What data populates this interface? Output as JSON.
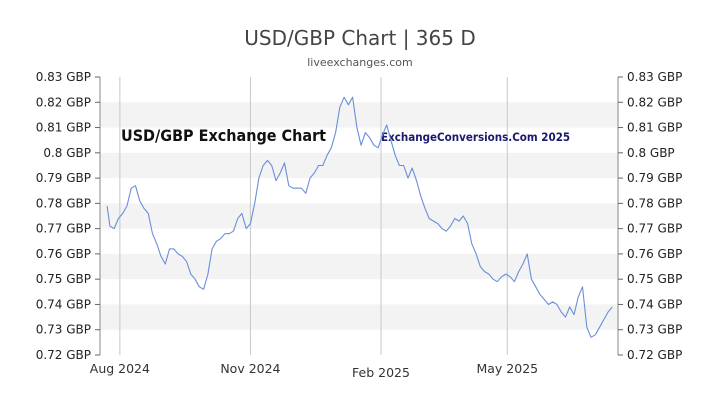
{
  "chart_data": {
    "type": "line",
    "title": "USD/GBP Chart | 365 D",
    "subtitle": "liveexchanges.com",
    "watermarks": [
      "USD/GBP Exchange Chart",
      "ExchangeConversions.Com 2025"
    ],
    "ylim": [
      0.72,
      0.83
    ],
    "yticks": [
      {
        "value": 0.83,
        "label": "0.83 GBP"
      },
      {
        "value": 0.82,
        "label": "0.82 GBP"
      },
      {
        "value": 0.81,
        "label": "0.81 GBP"
      },
      {
        "value": 0.8,
        "label": "0.8 GBP"
      },
      {
        "value": 0.79,
        "label": "0.79 GBP"
      },
      {
        "value": 0.78,
        "label": "0.78 GBP"
      },
      {
        "value": 0.77,
        "label": "0.77 GBP"
      },
      {
        "value": 0.76,
        "label": "0.76 GBP"
      },
      {
        "value": 0.75,
        "label": "0.75 GBP"
      },
      {
        "value": 0.74,
        "label": "0.74 GBP"
      },
      {
        "value": 0.73,
        "label": "0.73 GBP"
      },
      {
        "value": 0.72,
        "label": "0.72 GBP"
      }
    ],
    "xlim": [
      "2024-07-18",
      "2025-07-18"
    ],
    "xticks": [
      {
        "date": "2024-08-01",
        "label": "Aug 2024"
      },
      {
        "date": "2024-11-01",
        "label": "Nov 2024"
      },
      {
        "date": "2025-02-01",
        "label": "Feb 2025"
      },
      {
        "date": "2025-05-01",
        "label": "May 2025"
      }
    ],
    "grid": "horizontal bands and vertical lines at x ticks",
    "line_color": "#6a8fd8",
    "series": [
      {
        "x": [
          "2024-07-23",
          "2024-07-25",
          "2024-07-28",
          "2024-07-31",
          "2024-08-03",
          "2024-08-06",
          "2024-08-09",
          "2024-08-12",
          "2024-08-15",
          "2024-08-18",
          "2024-08-21",
          "2024-08-24",
          "2024-08-27",
          "2024-08-30",
          "2024-09-02",
          "2024-09-05",
          "2024-09-08",
          "2024-09-11",
          "2024-09-14",
          "2024-09-17",
          "2024-09-20",
          "2024-09-23",
          "2024-09-26",
          "2024-09-29",
          "2024-10-02",
          "2024-10-05",
          "2024-10-08",
          "2024-10-11",
          "2024-10-14",
          "2024-10-17",
          "2024-10-20",
          "2024-10-23",
          "2024-10-26",
          "2024-10-29",
          "2024-11-01",
          "2024-11-04",
          "2024-11-07",
          "2024-11-10",
          "2024-11-13",
          "2024-11-16",
          "2024-11-19",
          "2024-11-22",
          "2024-11-25",
          "2024-11-28",
          "2024-12-01",
          "2024-12-04",
          "2024-12-07",
          "2024-12-10",
          "2024-12-13",
          "2024-12-16",
          "2024-12-19",
          "2024-12-22",
          "2024-12-25",
          "2024-12-28",
          "2024-12-31",
          "2025-01-03",
          "2025-01-06",
          "2025-01-09",
          "2025-01-12",
          "2025-01-15",
          "2025-01-18",
          "2025-01-21",
          "2025-01-24",
          "2025-01-27",
          "2025-01-30",
          "2025-02-02",
          "2025-02-05",
          "2025-02-08",
          "2025-02-11",
          "2025-02-14",
          "2025-02-17",
          "2025-02-20",
          "2025-02-23",
          "2025-02-26",
          "2025-03-01",
          "2025-03-04",
          "2025-03-07",
          "2025-03-10",
          "2025-03-13",
          "2025-03-16",
          "2025-03-19",
          "2025-03-22",
          "2025-03-25",
          "2025-03-28",
          "2025-03-31",
          "2025-04-03",
          "2025-04-06",
          "2025-04-09",
          "2025-04-12",
          "2025-04-15",
          "2025-04-18",
          "2025-04-21",
          "2025-04-24",
          "2025-04-27",
          "2025-04-30",
          "2025-05-03",
          "2025-05-06",
          "2025-05-09",
          "2025-05-12",
          "2025-05-15",
          "2025-05-18",
          "2025-05-21",
          "2025-05-24",
          "2025-05-27",
          "2025-05-30",
          "2025-06-02",
          "2025-06-05",
          "2025-06-08",
          "2025-06-11",
          "2025-06-14",
          "2025-06-17",
          "2025-06-20",
          "2025-06-23",
          "2025-06-26",
          "2025-06-29",
          "2025-07-02",
          "2025-07-05",
          "2025-07-08",
          "2025-07-11",
          "2025-07-14"
        ],
        "values": [
          0.779,
          0.771,
          0.77,
          0.774,
          0.776,
          0.779,
          0.786,
          0.787,
          0.781,
          0.778,
          0.776,
          0.768,
          0.764,
          0.759,
          0.756,
          0.762,
          0.762,
          0.76,
          0.759,
          0.757,
          0.752,
          0.75,
          0.747,
          0.746,
          0.752,
          0.762,
          0.765,
          0.766,
          0.768,
          0.768,
          0.769,
          0.774,
          0.776,
          0.77,
          0.772,
          0.78,
          0.79,
          0.795,
          0.797,
          0.795,
          0.789,
          0.792,
          0.796,
          0.787,
          0.786,
          0.786,
          0.786,
          0.784,
          0.79,
          0.792,
          0.795,
          0.795,
          0.799,
          0.802,
          0.808,
          0.818,
          0.822,
          0.819,
          0.822,
          0.81,
          0.803,
          0.808,
          0.806,
          0.803,
          0.802,
          0.807,
          0.811,
          0.805,
          0.799,
          0.795,
          0.795,
          0.79,
          0.794,
          0.789,
          0.783,
          0.778,
          0.774,
          0.773,
          0.772,
          0.77,
          0.769,
          0.771,
          0.774,
          0.773,
          0.775,
          0.772,
          0.764,
          0.76,
          0.755,
          0.753,
          0.752,
          0.75,
          0.749,
          0.751,
          0.752,
          0.751,
          0.749,
          0.753,
          0.756,
          0.76,
          0.75,
          0.747,
          0.744,
          0.742,
          0.74,
          0.741,
          0.74,
          0.737,
          0.735,
          0.739,
          0.736,
          0.743,
          0.747,
          0.731,
          0.727,
          0.728,
          0.731,
          0.734,
          0.737,
          0.739
        ]
      }
    ]
  }
}
